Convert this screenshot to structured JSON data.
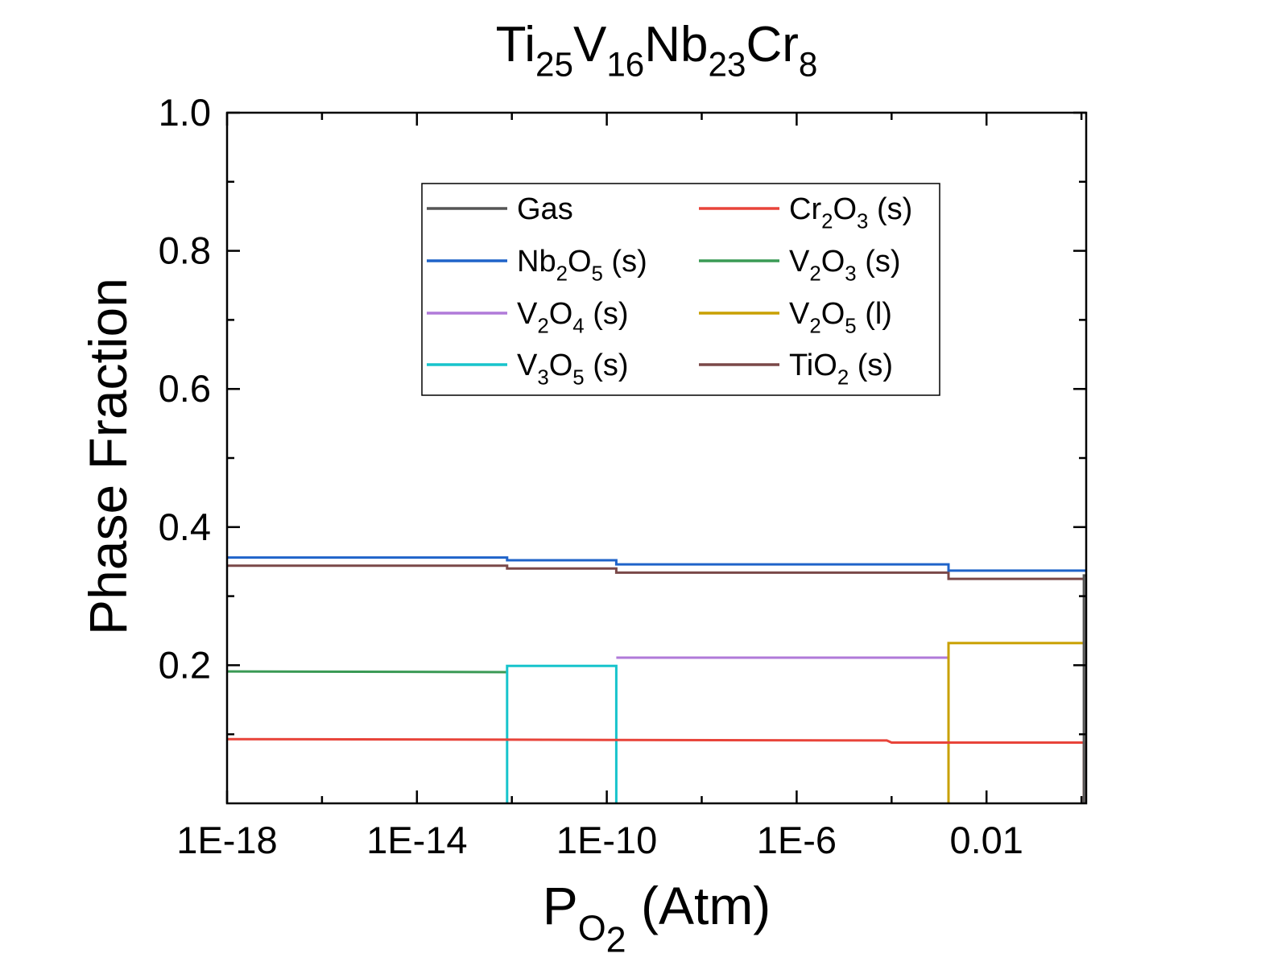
{
  "chart_data": {
    "type": "line",
    "title": {
      "parts": [
        {
          "t": "Ti"
        },
        {
          "sub": "25"
        },
        {
          "t": "V"
        },
        {
          "sub": "16"
        },
        {
          "t": "Nb"
        },
        {
          "sub": "23"
        },
        {
          "t": "Cr"
        },
        {
          "sub": "8"
        }
      ]
    },
    "xlabel": {
      "parts": [
        {
          "t": "P"
        },
        {
          "sub": "O"
        },
        {
          "subsub": "2"
        },
        {
          "t": " (Atm)"
        }
      ]
    },
    "ylabel": {
      "parts": [
        {
          "t": "Phase Fraction"
        }
      ]
    },
    "x_scale": "log10",
    "xlim_log10": [
      -18,
      0.1
    ],
    "ylim": [
      0,
      1.0
    ],
    "x_ticks": [
      {
        "log10": -18,
        "label": "1E-18"
      },
      {
        "log10": -14,
        "label": "1E-14"
      },
      {
        "log10": -10,
        "label": "1E-10"
      },
      {
        "log10": -6,
        "label": "1E-6"
      },
      {
        "log10": -2,
        "label": "0.01"
      }
    ],
    "y_ticks": [
      {
        "value": 0.2,
        "label": "0.2"
      },
      {
        "value": 0.4,
        "label": "0.4"
      },
      {
        "value": 0.6,
        "label": "0.6"
      },
      {
        "value": 0.8,
        "label": "0.8"
      },
      {
        "value": 1.0,
        "label": "1.0"
      }
    ],
    "legend_position": "upper-center",
    "legend_columns": 2,
    "series": [
      {
        "key": "gas",
        "name": {
          "parts": [
            {
              "t": "Gas"
            }
          ]
        },
        "color": "#555555",
        "points": [
          [
            0.05,
            0.0
          ],
          [
            0.05,
            0.33
          ],
          [
            0.1,
            0.33
          ]
        ]
      },
      {
        "key": "cr2o3",
        "name": {
          "parts": [
            {
              "t": "Cr"
            },
            {
              "sub": "2"
            },
            {
              "t": "O"
            },
            {
              "sub": "3"
            },
            {
              "t": " (s)"
            }
          ]
        },
        "color": "#e8443a",
        "points": [
          [
            -18,
            0.093
          ],
          [
            -4.1,
            0.091
          ],
          [
            -4,
            0.088
          ],
          [
            0.05,
            0.088
          ],
          [
            0.05,
            0.0
          ]
        ]
      },
      {
        "key": "nb2o5",
        "name": {
          "parts": [
            {
              "t": "Nb"
            },
            {
              "sub": "2"
            },
            {
              "t": "O"
            },
            {
              "sub": "5"
            },
            {
              "t": " (s)"
            }
          ]
        },
        "color": "#1f63c9",
        "points": [
          [
            -18,
            0.356
          ],
          [
            -12.1,
            0.356
          ],
          [
            -12.1,
            0.352
          ],
          [
            -9.8,
            0.352
          ],
          [
            -9.8,
            0.346
          ],
          [
            -2.8,
            0.346
          ],
          [
            -2.8,
            0.337
          ],
          [
            0.1,
            0.337
          ]
        ]
      },
      {
        "key": "v2o3",
        "name": {
          "parts": [
            {
              "t": "V"
            },
            {
              "sub": "2"
            },
            {
              "t": "O"
            },
            {
              "sub": "3"
            },
            {
              "t": " (s)"
            }
          ]
        },
        "color": "#3a9a55",
        "points": [
          [
            -18,
            0.191
          ],
          [
            -12.1,
            0.19
          ]
        ]
      },
      {
        "key": "v2o4",
        "name": {
          "parts": [
            {
              "t": "V"
            },
            {
              "sub": "2"
            },
            {
              "t": "O"
            },
            {
              "sub": "4"
            },
            {
              "t": " (s)"
            }
          ]
        },
        "color": "#b07ad9",
        "points": [
          [
            -9.8,
            0.211
          ],
          [
            -2.8,
            0.211
          ]
        ]
      },
      {
        "key": "v2o5",
        "name": {
          "parts": [
            {
              "t": "V"
            },
            {
              "sub": "2"
            },
            {
              "t": "O"
            },
            {
              "sub": "5"
            },
            {
              "t": " (l)"
            }
          ]
        },
        "color": "#c9a000",
        "points": [
          [
            -2.8,
            0.0
          ],
          [
            -2.8,
            0.232
          ],
          [
            0.05,
            0.232
          ]
        ]
      },
      {
        "key": "v3o5",
        "name": {
          "parts": [
            {
              "t": "V"
            },
            {
              "sub": "3"
            },
            {
              "t": "O"
            },
            {
              "sub": "5"
            },
            {
              "t": " (s)"
            }
          ]
        },
        "color": "#17c4cc",
        "points": [
          [
            -12.1,
            0.0
          ],
          [
            -12.1,
            0.199
          ],
          [
            -9.8,
            0.199
          ],
          [
            -9.8,
            0.0
          ]
        ]
      },
      {
        "key": "tio2",
        "name": {
          "parts": [
            {
              "t": "TiO"
            },
            {
              "sub": "2"
            },
            {
              "t": " (s)"
            }
          ]
        },
        "color": "#7a4848",
        "points": [
          [
            -18,
            0.344
          ],
          [
            -12.1,
            0.344
          ],
          [
            -12.1,
            0.34
          ],
          [
            -9.8,
            0.34
          ],
          [
            -9.8,
            0.334
          ],
          [
            -2.8,
            0.334
          ],
          [
            -2.8,
            0.325
          ],
          [
            0.05,
            0.325
          ]
        ]
      }
    ]
  }
}
